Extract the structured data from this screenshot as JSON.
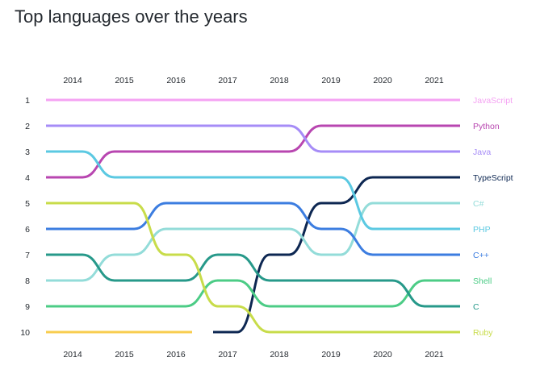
{
  "chart_data": {
    "type": "line",
    "title": "Top languages over the years",
    "subtitle": "",
    "xlabel": "",
    "ylabel": "",
    "x": [
      "2014",
      "2015",
      "2016",
      "2017",
      "2018",
      "2019",
      "2020",
      "2021"
    ],
    "ranks": [
      1,
      2,
      3,
      4,
      5,
      6,
      7,
      8,
      9,
      10
    ],
    "y_inverted": true,
    "ylim": [
      1,
      10
    ],
    "grid": false,
    "legend": "right-end labels",
    "series": [
      {
        "name": "JavaScript",
        "color": "#f5a3f3",
        "values": [
          1,
          1,
          1,
          1,
          1,
          1,
          1,
          1
        ]
      },
      {
        "name": "Python",
        "color": "#b846b0",
        "values": [
          4,
          3,
          3,
          3,
          3,
          2,
          2,
          2
        ]
      },
      {
        "name": "Java",
        "color": "#a68cf7",
        "values": [
          2,
          2,
          2,
          2,
          2,
          3,
          3,
          3
        ]
      },
      {
        "name": "TypeScript",
        "color": "#0d2752",
        "values": [
          null,
          null,
          null,
          10,
          7,
          5,
          4,
          4
        ]
      },
      {
        "name": "C#",
        "color": "#93dcd9",
        "values": [
          8,
          7,
          6,
          6,
          6,
          7,
          5,
          5
        ]
      },
      {
        "name": "PHP",
        "color": "#5bc9e2",
        "values": [
          3,
          4,
          4,
          4,
          4,
          4,
          6,
          6
        ]
      },
      {
        "name": "C++",
        "color": "#3c7de0",
        "values": [
          6,
          6,
          5,
          5,
          5,
          6,
          7,
          7
        ]
      },
      {
        "name": "Shell",
        "color": "#4ccc86",
        "values": [
          9,
          9,
          9,
          8,
          9,
          9,
          9,
          8
        ]
      },
      {
        "name": "C",
        "color": "#27998a",
        "values": [
          7,
          8,
          8,
          7,
          8,
          8,
          8,
          9
        ]
      },
      {
        "name": "Ruby",
        "color": "#c8dc4a",
        "values": [
          5,
          5,
          7,
          9,
          10,
          10,
          10,
          10
        ]
      },
      {
        "name": "",
        "color": "#f8cd4f",
        "values": [
          10,
          10,
          10,
          null,
          null,
          null,
          null,
          null
        ]
      }
    ]
  }
}
